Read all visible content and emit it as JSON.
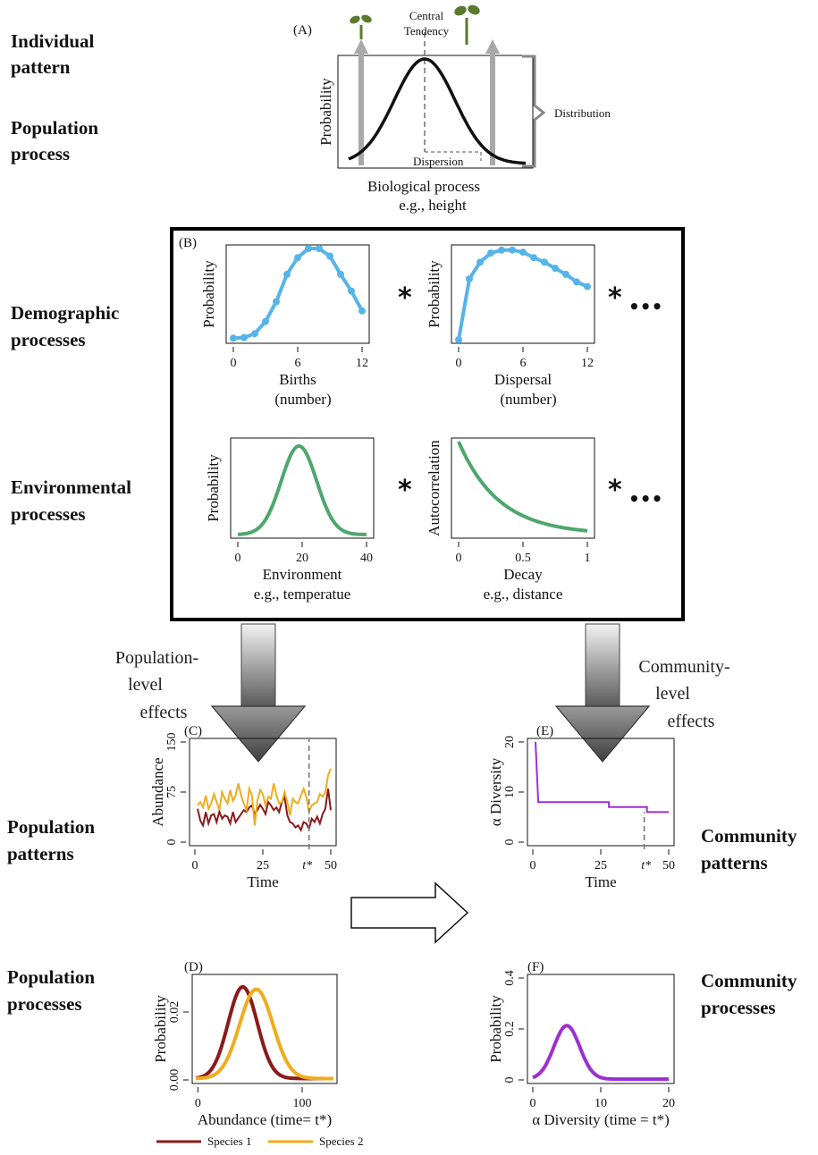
{
  "side_labels": {
    "individual": [
      "Individual",
      "pattern"
    ],
    "population_process": [
      "Population",
      "process"
    ],
    "demographic": [
      "Demographic",
      "processes"
    ],
    "environmental": [
      "Environmental",
      "processes"
    ],
    "population_patterns": [
      "Population",
      "patterns"
    ],
    "population_processes": [
      "Population",
      "processes"
    ],
    "community_patterns": [
      "Community",
      "patterns"
    ],
    "community_processes": [
      "Community",
      "processes"
    ]
  },
  "panel_a": {
    "tag": "(A)",
    "central": [
      "Central",
      "Tendency"
    ],
    "dispersion": "Dispersion",
    "distribution": "Distribution",
    "ylabel": "Probability",
    "xlabel": [
      "Biological process",
      "e.g., height"
    ]
  },
  "effects": {
    "population": [
      "Population-",
      "level",
      "effects"
    ],
    "community": [
      "Community-",
      "level",
      "effects"
    ]
  },
  "operators": {
    "star": "*",
    "dots": "•••"
  },
  "chart_data": [
    {
      "id": "A",
      "type": "line",
      "title": "",
      "xlabel": "Biological process e.g., height",
      "ylabel": "Probability",
      "series": [
        {
          "name": "",
          "shape": "normal",
          "mean": 0,
          "sd": 1
        }
      ]
    },
    {
      "id": "B1",
      "type": "line",
      "xlabel": "Births (number)",
      "ylabel": "Probability",
      "xlim": [
        0,
        12
      ],
      "xticks": [
        "0",
        "6",
        "12"
      ],
      "color": "#56b4e9",
      "x": [
        0,
        1,
        2,
        3,
        4,
        5,
        6,
        7,
        8,
        9,
        10,
        11,
        12
      ],
      "values": [
        0.005,
        0.007,
        0.02,
        0.06,
        0.125,
        0.215,
        0.27,
        0.3,
        0.3,
        0.275,
        0.215,
        0.16,
        0.095
      ]
    },
    {
      "id": "B2",
      "type": "line",
      "xlabel": "Dispersal (number)",
      "ylabel": "Probability",
      "xlim": [
        0,
        12
      ],
      "xticks": [
        "0",
        "6",
        "12"
      ],
      "color": "#56b4e9",
      "x": [
        0,
        1,
        2,
        3,
        4,
        5,
        6,
        7,
        8,
        9,
        10,
        11,
        12
      ],
      "values": [
        0.0,
        0.2,
        0.255,
        0.285,
        0.295,
        0.295,
        0.288,
        0.27,
        0.255,
        0.235,
        0.215,
        0.19,
        0.175
      ]
    },
    {
      "id": "B3",
      "type": "line",
      "xlabel": "Environment e.g., temperatue",
      "ylabel": "Probability",
      "xlim": [
        0,
        40
      ],
      "xticks": [
        "0",
        "20",
        "40"
      ],
      "color": "#4fa66e",
      "series": [
        {
          "name": "",
          "shape": "normal",
          "mean": 19,
          "sd": 5.5
        }
      ]
    },
    {
      "id": "B4",
      "type": "line",
      "xlabel": "Decay e.g., distance",
      "ylabel": "Autocorrelation",
      "xlim": [
        0,
        1
      ],
      "xticks": [
        "0",
        "0.5",
        "1"
      ],
      "color": "#4fa66e",
      "series": [
        {
          "name": "",
          "shape": "exponential",
          "rate": 3.2
        }
      ]
    },
    {
      "id": "C",
      "type": "line",
      "xlabel": "Time",
      "ylabel": "Abundance",
      "xlim": [
        0,
        50
      ],
      "ylim": [
        0,
        150
      ],
      "xticks": [
        "0",
        "25",
        "50"
      ],
      "yticks": [
        "0",
        "75",
        "150"
      ],
      "marker": "t*",
      "marker_x": 42,
      "x": [
        1,
        2,
        3,
        4,
        5,
        6,
        7,
        8,
        9,
        10,
        11,
        12,
        13,
        14,
        15,
        16,
        17,
        18,
        19,
        20,
        21,
        22,
        23,
        24,
        25,
        26,
        27,
        28,
        29,
        30,
        31,
        32,
        33,
        34,
        35,
        36,
        37,
        38,
        39,
        40,
        41,
        42,
        43,
        44,
        45,
        46,
        47,
        48,
        49,
        50
      ],
      "series": [
        {
          "name": "Species 1",
          "color": "#8b1a1a",
          "values": [
            50,
            32,
            25,
            45,
            28,
            40,
            42,
            30,
            46,
            35,
            40,
            38,
            28,
            45,
            30,
            36,
            42,
            48,
            45,
            52,
            55,
            42,
            48,
            56,
            50,
            42,
            60,
            55,
            48,
            52,
            45,
            60,
            68,
            40,
            30,
            28,
            22,
            25,
            18,
            30,
            28,
            20,
            35,
            30,
            38,
            28,
            42,
            50,
            80,
            48
          ]
        },
        {
          "name": "Species 2",
          "color": "#f0ac1e",
          "values": [
            55,
            60,
            52,
            70,
            50,
            58,
            72,
            60,
            48,
            75,
            65,
            58,
            78,
            62,
            70,
            88,
            70,
            58,
            48,
            80,
            70,
            25,
            62,
            78,
            72,
            55,
            68,
            65,
            88,
            70,
            58,
            60,
            75,
            60,
            40,
            65,
            60,
            58,
            70,
            80,
            68,
            45,
            55,
            58,
            60,
            72,
            68,
            75,
            100,
            110
          ]
        }
      ]
    },
    {
      "id": "D",
      "type": "line",
      "xlabel": "Abundance (time= t*)",
      "ylabel": "Probability",
      "xlim": [
        -2,
        130
      ],
      "ylim": [
        0,
        0.03
      ],
      "xticks": [
        "0",
        "100"
      ],
      "yticks": [
        "0.00",
        "0.02"
      ],
      "legend": "bottom",
      "series": [
        {
          "name": "Species 1",
          "color": "#8b1a1a",
          "shape": "normal",
          "mean": 43,
          "sd": 14,
          "peak": 0.027
        },
        {
          "name": "Species 2",
          "color": "#f0ac1e",
          "shape": "normal",
          "mean": 56,
          "sd": 16,
          "peak": 0.0263
        }
      ]
    },
    {
      "id": "E",
      "type": "line",
      "xlabel": "Time",
      "ylabel": "α Diversity",
      "xlim": [
        0,
        50
      ],
      "ylim": [
        0,
        20
      ],
      "xticks": [
        "0",
        "25",
        "50"
      ],
      "yticks": [
        "0",
        "10",
        "20"
      ],
      "marker": "t*",
      "marker_x": 41,
      "color": "#9b30d0",
      "x": [
        1,
        2,
        2,
        28,
        28,
        42,
        42,
        50
      ],
      "values": [
        20,
        8,
        8,
        8,
        7,
        7,
        6,
        6
      ]
    },
    {
      "id": "F",
      "type": "line",
      "xlabel": "α Diversity (time = t*)",
      "ylabel": "Probability",
      "xlim": [
        0,
        20
      ],
      "ylim": [
        0,
        0.4
      ],
      "xticks": [
        "0",
        "10",
        "20"
      ],
      "yticks": [
        "0",
        "0.2",
        "0.4"
      ],
      "color": "#9b30d0",
      "series": [
        {
          "name": "",
          "shape": "normal",
          "mean": 5,
          "sd": 1.9,
          "peak": 0.21
        }
      ]
    }
  ],
  "legend": [
    "Species 1",
    "Species 2"
  ],
  "colors": {
    "blue": "#56b4e9",
    "green": "#4fa66e",
    "red": "#8b1a1a",
    "orange": "#f0ac1e",
    "purple": "#9b30d0",
    "sprout": "#5b7a2e"
  }
}
